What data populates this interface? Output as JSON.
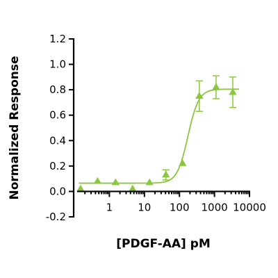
{
  "chart_data": {
    "type": "scatter",
    "title": "",
    "xlabel": "[PDGF-AA] pM",
    "ylabel": "Normalized Response",
    "xscale": "log",
    "xlim": [
      0.12,
      10000
    ],
    "ylim": [
      -0.2,
      1.2
    ],
    "grid": false,
    "legend": "none",
    "color": "#8cc63f",
    "x_ticks": [
      {
        "value": 1,
        "label": "1"
      },
      {
        "value": 10,
        "label": "10"
      },
      {
        "value": 100,
        "label": "100"
      },
      {
        "value": 1000,
        "label": "1000"
      },
      {
        "value": 10000,
        "label": "10000"
      }
    ],
    "y_ticks": [
      {
        "value": -0.2,
        "label": "-0.2"
      },
      {
        "value": 0.0,
        "label": "0.0"
      },
      {
        "value": 0.2,
        "label": "0.2"
      },
      {
        "value": 0.4,
        "label": "0.4"
      },
      {
        "value": 0.6,
        "label": "0.6"
      },
      {
        "value": 0.8,
        "label": "0.8"
      },
      {
        "value": 1.0,
        "label": "1.0"
      },
      {
        "value": 1.2,
        "label": "1.2"
      }
    ],
    "series": [
      {
        "points": [
          {
            "x": 0.15,
            "y": 0.02,
            "yerr": 0.0
          },
          {
            "x": 0.46,
            "y": 0.08,
            "yerr": 0.0
          },
          {
            "x": 1.5,
            "y": 0.07,
            "yerr": 0.0
          },
          {
            "x": 4.6,
            "y": 0.02,
            "yerr": 0.0
          },
          {
            "x": 14,
            "y": 0.07,
            "yerr": 0.0
          },
          {
            "x": 41,
            "y": 0.13,
            "yerr": 0.04
          },
          {
            "x": 123,
            "y": 0.22,
            "yerr": 0.0
          },
          {
            "x": 370,
            "y": 0.75,
            "yerr": 0.12
          },
          {
            "x": 1111,
            "y": 0.82,
            "yerr": 0.09
          },
          {
            "x": 3333,
            "y": 0.78,
            "yerr": 0.12
          }
        ],
        "fit": {
          "model": "4PL",
          "bottom": 0.065,
          "top": 0.805,
          "ec50": 175,
          "hill": 2.8
        }
      }
    ]
  }
}
